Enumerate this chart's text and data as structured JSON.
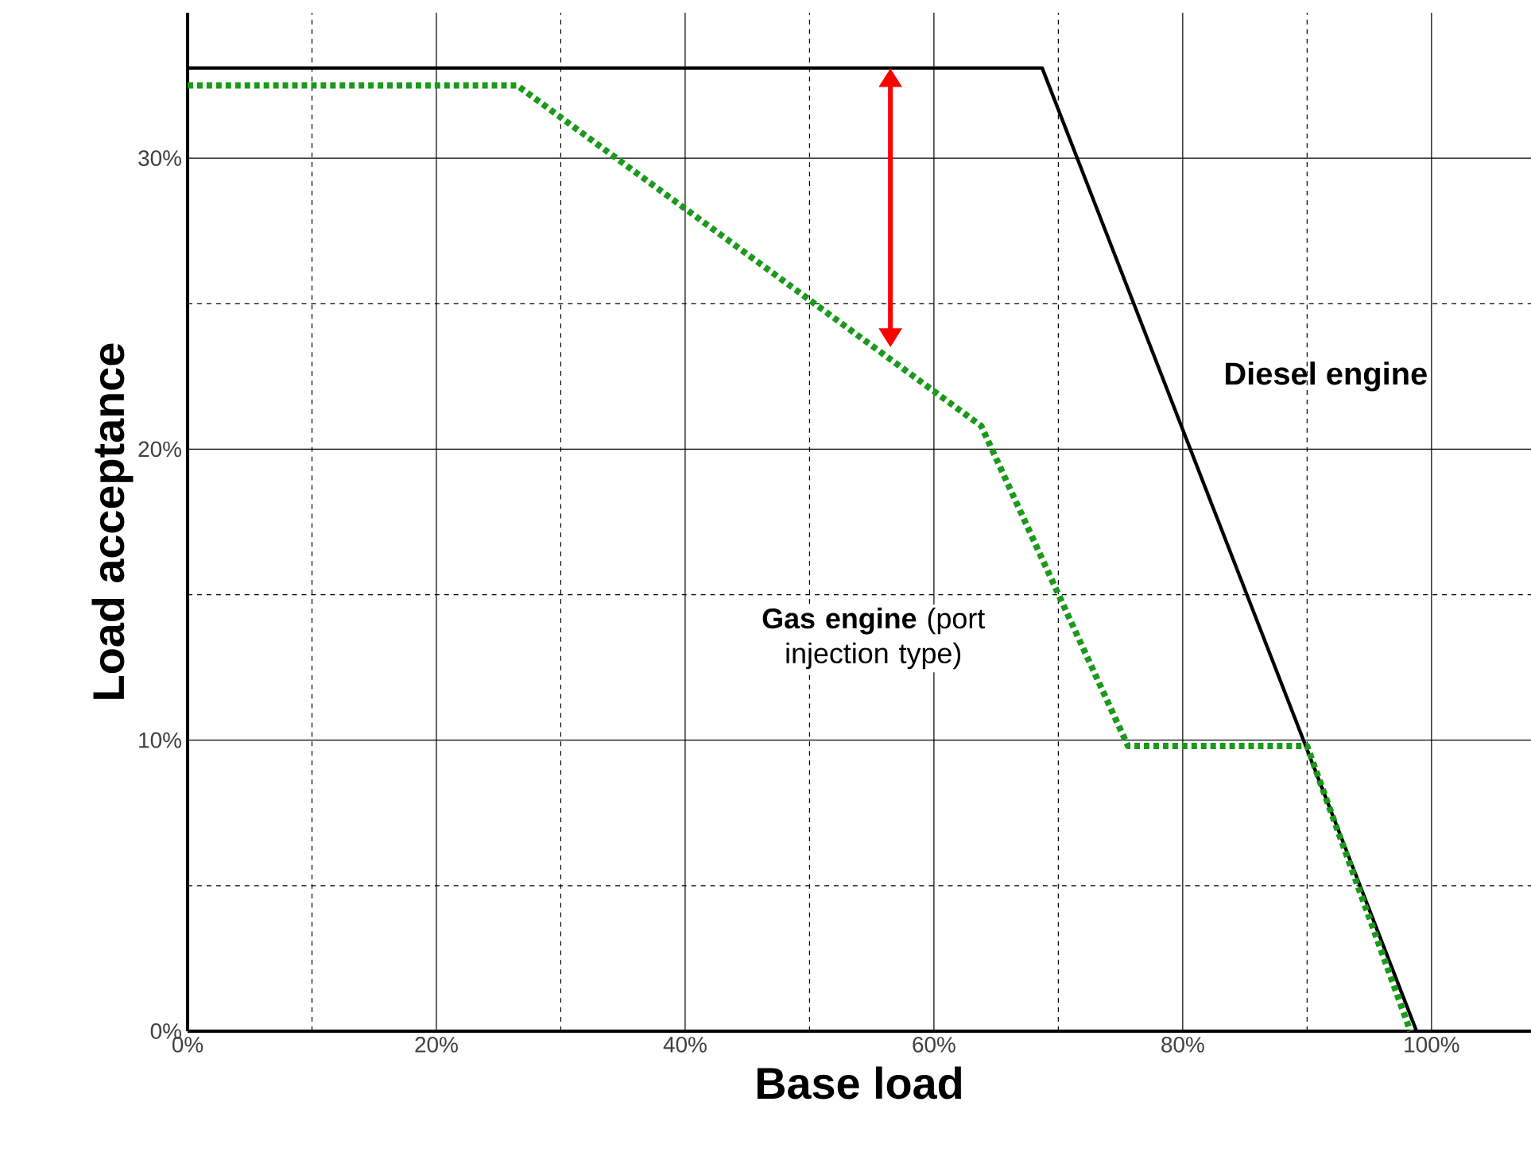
{
  "chart_data": {
    "type": "line",
    "xlabel": "Base load",
    "ylabel": "Load acceptance",
    "xlim": [
      0,
      108
    ],
    "ylim": [
      0,
      35
    ],
    "xticks": [
      {
        "value": 0,
        "label": "0%"
      },
      {
        "value": 20,
        "label": "20%"
      },
      {
        "value": 40,
        "label": "40%"
      },
      {
        "value": 60,
        "label": "60%"
      },
      {
        "value": 80,
        "label": "80%"
      },
      {
        "value": 100,
        "label": "100%"
      }
    ],
    "yticks": [
      {
        "value": 0,
        "label": "0%"
      },
      {
        "value": 10,
        "label": "10%"
      },
      {
        "value": 20,
        "label": "20%"
      },
      {
        "value": 30,
        "label": "30%"
      }
    ],
    "grid": true,
    "legend": false,
    "marker": "none",
    "series": [
      {
        "name": "Diesel engine",
        "color": "#000000",
        "line_style": "solid",
        "x": [
          0,
          68.7,
          98.8
        ],
        "values": [
          33.1,
          33.1,
          0
        ]
      },
      {
        "name": "**Gas engine** (port injection type)",
        "color": "#1a9a1a",
        "line_style": "dotted",
        "x": [
          0,
          26.5,
          63.8,
          75.6,
          90,
          98.3
        ],
        "values": [
          32.5,
          32.5,
          20.8,
          9.8,
          9.8,
          0
        ]
      }
    ]
  }
}
